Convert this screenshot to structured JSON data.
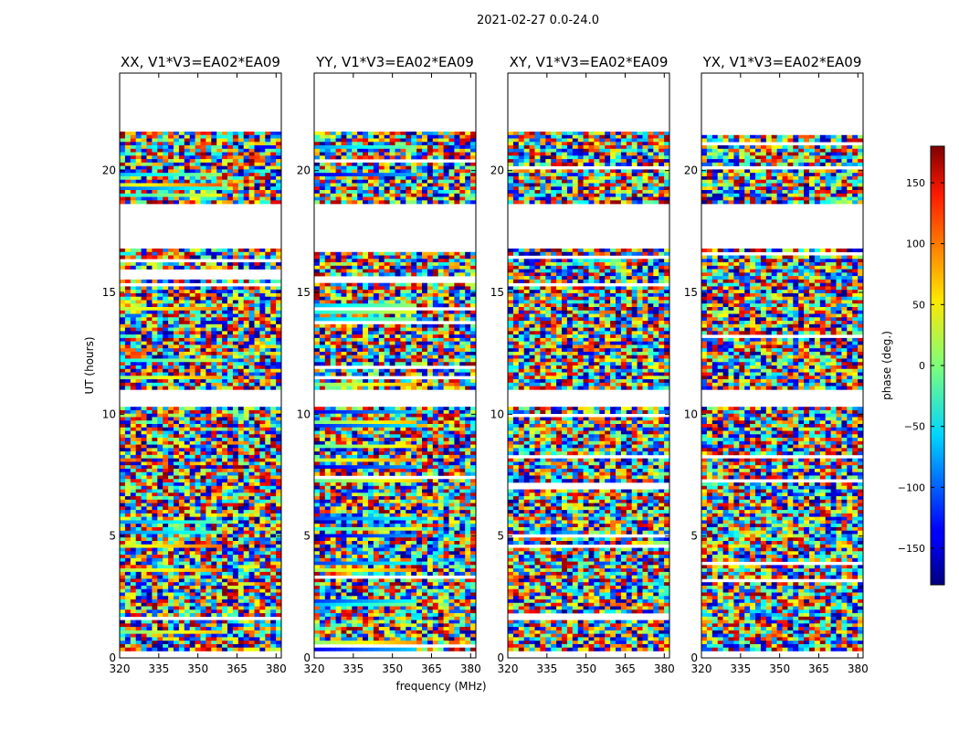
{
  "chart_data": {
    "type": "heatmap",
    "suptitle": "2021-02-27 0.0-24.0",
    "xlabel": "frequency (MHz)",
    "ylabel": "UT (hours)",
    "xlim": [
      320,
      382
    ],
    "ylim": [
      0,
      24
    ],
    "xticks": [
      320,
      335,
      350,
      365,
      380
    ],
    "yticks": [
      0,
      5,
      10,
      15,
      20
    ],
    "panels": [
      {
        "title": "XX, V1*V3=EA02*EA09",
        "corr": "XX"
      },
      {
        "title": "YY, V1*V3=EA02*EA09",
        "corr": "YY"
      },
      {
        "title": "XY, V1*V3=EA02*EA09",
        "corr": "XY"
      },
      {
        "title": "YX, V1*V3=EA02*EA09",
        "corr": "YX"
      }
    ],
    "data_gaps_hours": [
      [
        21.6,
        24.0
      ],
      [
        16.8,
        18.6
      ],
      [
        10.3,
        11.0
      ],
      [
        0.0,
        0.3
      ]
    ],
    "colorbar": {
      "label": "phase (deg.)",
      "range": [
        -180,
        180
      ],
      "ticks": [
        150,
        100,
        50,
        0,
        -50,
        -100,
        -150
      ],
      "tick_labels": [
        "150",
        "100",
        "50",
        "0",
        "−50",
        "−100",
        "−150"
      ],
      "colormap": "jet"
    }
  }
}
